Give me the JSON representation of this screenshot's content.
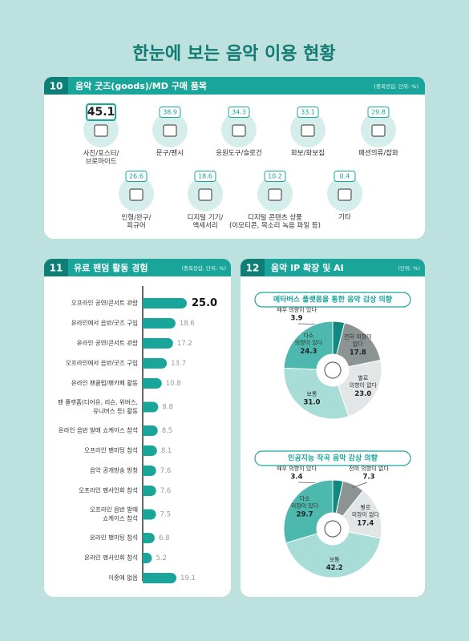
{
  "title": "한눈에 보는 음악 이용 현황",
  "sections": [
    {
      "number": "10",
      "title": "음악 굿즈(goods)/MD 구매 품목",
      "note": "(중복응답, 단위: %)"
    },
    {
      "number": "11",
      "title": "유료 팬덤 활동 경험",
      "note": "(중복응답, 단위: %)"
    },
    {
      "number": "12",
      "title": "음악 IP 확장 및 AI",
      "note": "(단위: %)"
    }
  ],
  "chart_data": [
    {
      "type": "pictograph",
      "categories": [
        "사진/포스터/\n브로마이드",
        "문구/팬시",
        "응원도구/슬로건",
        "화보/화보집",
        "패션의류/잡화",
        "인형/완구/\n피규어",
        "디지털 기기/\n액세서리",
        "디지털 콘텐츠 상품\n(이모티콘, 목소리 녹음 파일 등)",
        "기타"
      ],
      "values": [
        45.1,
        38.9,
        34.3,
        33.1,
        29.8,
        26.6,
        18.6,
        10.2,
        0.4
      ],
      "color": "#1aa59b"
    },
    {
      "type": "bar",
      "orientation": "horizontal",
      "categories": [
        "오프라인 공연/콘서트 관람",
        "온라인에서 음반/굿즈 구입",
        "온라인 공연/콘서트 관람",
        "오프라인에서 음반/굿즈 구입",
        "온라인 팬클럽/팬카페 활동",
        "팬 플랫폼(디어유, 리슨, 위버스,\n유니버스 등) 활동",
        "온라인 음반 발매 쇼케이스 참석",
        "오프라인 팬미팅 참석",
        "음악 공개방송 방청",
        "오프라인 팬사인회 참석",
        "오프라인 음반 발매\n쇼케이스 참석",
        "온라인 팬미팅 참석",
        "온라인 팬사인회 참석",
        "이중에 없음"
      ],
      "values": [
        25,
        18.6,
        17.2,
        13.7,
        10.8,
        8.8,
        8.5,
        8.1,
        7.6,
        7.6,
        7.5,
        6.8,
        5.2,
        19.1
      ],
      "value_labels": [
        "25.0",
        "18.6",
        "17.2",
        "13.7",
        "10.8",
        "8.8",
        "8.5",
        "8.1",
        "7.6",
        "7.6",
        "7.5",
        "6.8",
        "5.2",
        "19.1"
      ],
      "color": "#1aa59b"
    },
    {
      "type": "pie",
      "donut": true,
      "subtitle": "메타버스 플랫폼을 통한 음악 감상 의향",
      "categories": [
        "매우 의향이 있다",
        "전혀 의향이\n없다",
        "별로\n의향이 없다",
        "보통",
        "다소\n의향이 있다"
      ],
      "values": [
        3.9,
        17.8,
        23,
        31,
        24.3
      ],
      "value_labels": [
        "3.9",
        "17.8",
        "23.0",
        "31.0",
        "24.3"
      ],
      "colors": [
        "#0f8a80",
        "#8c9493",
        "#e3e6e6",
        "#a8dcd6",
        "#4db8ad"
      ]
    },
    {
      "type": "pie",
      "donut": true,
      "subtitle": "인공지능 작곡 음악 감상 의향",
      "categories": [
        "매우 의향이 있다",
        "전혀 의향이 없다",
        "별로\n의향이 없다",
        "보통",
        "다소\n의향이 있다"
      ],
      "values": [
        3.4,
        7.3,
        17.4,
        42.2,
        29.7
      ],
      "value_labels": [
        "3.4",
        "7.3",
        "17.4",
        "42.2",
        "29.7"
      ],
      "colors": [
        "#0f8a80",
        "#8c9493",
        "#e3e6e6",
        "#a8dcd6",
        "#4db8ad"
      ]
    }
  ]
}
